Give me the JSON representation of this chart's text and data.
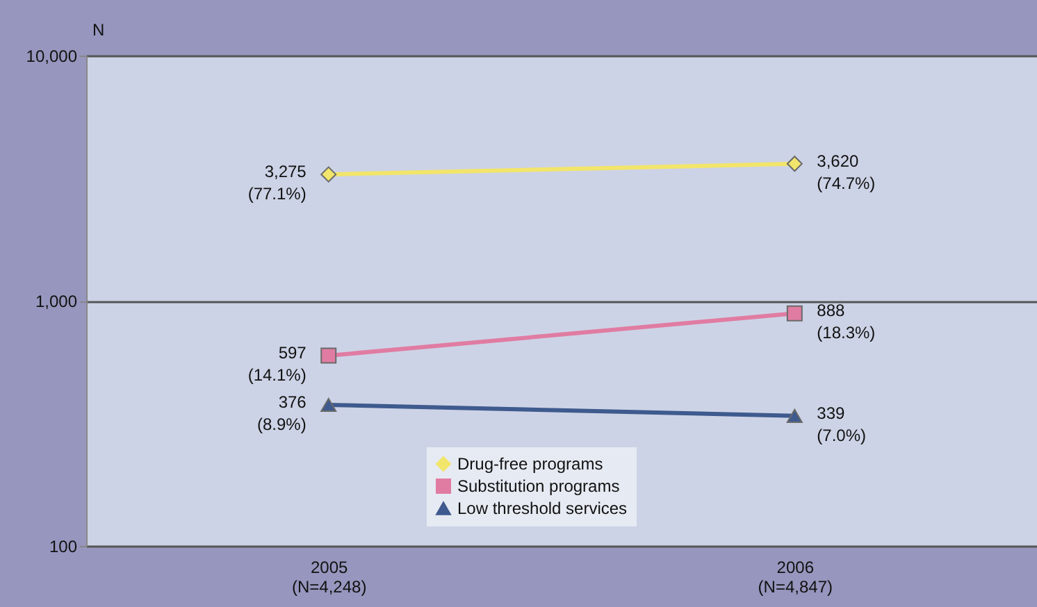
{
  "chart_data": {
    "type": "line",
    "ylabel": "N",
    "categories": [
      "2005\n(N=4,248)",
      "2006\n(N=4,847)"
    ],
    "series": [
      {
        "name": "Drug-free programs",
        "color": "#f2e56b",
        "marker": "diamond",
        "values": [
          3275,
          3620
        ],
        "value_labels": [
          "3,275\n(77.1%)",
          "3,620\n(74.7%)"
        ]
      },
      {
        "name": "Substitution programs",
        "color": "#e07ca2",
        "marker": "square",
        "values": [
          597,
          888
        ],
        "value_labels": [
          "597\n(14.1%)",
          "888\n(18.3%)"
        ]
      },
      {
        "name": "Low threshold services",
        "color": "#3e5a8e",
        "marker": "triangle",
        "values": [
          376,
          339
        ],
        "value_labels": [
          "376\n(8.9%)",
          "339\n(7.0%)"
        ]
      }
    ],
    "log": "y",
    "ylim": [
      100,
      10000
    ],
    "yticks": [
      100,
      {
        "value": 1000,
        "label": "1,000"
      },
      {
        "value": 10000,
        "label": "10,000"
      }
    ],
    "grid": "y",
    "legend": "bottom",
    "line_style": "solid"
  }
}
